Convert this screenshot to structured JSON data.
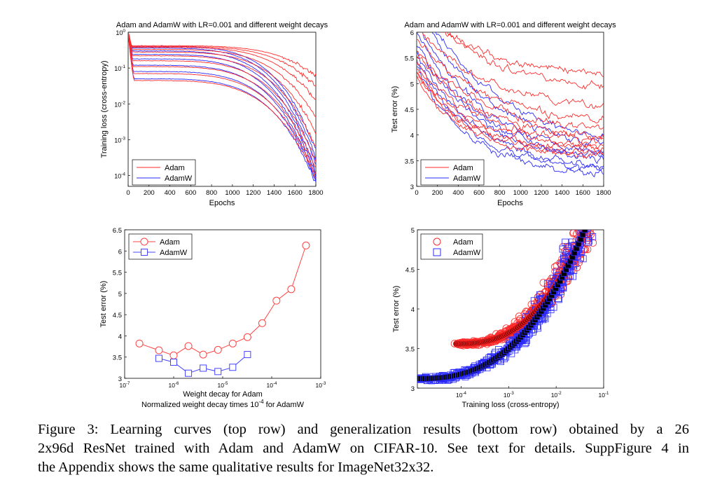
{
  "chart_data": [
    {
      "type": "line",
      "title": "Adam and AdamW with LR=0.001 and different weight decays",
      "xlabel": "Epochs",
      "ylabel": "Training loss (cross-entropy)",
      "xlim": [
        0,
        1800
      ],
      "ylim": [
        5e-05,
        1
      ],
      "yscale": "log",
      "xticks": [
        "0",
        "200",
        "400",
        "600",
        "800",
        "1000",
        "1200",
        "1400",
        "1600",
        "1800"
      ],
      "yticks": [
        {
          "value": 1,
          "base": "10",
          "exp": "0"
        },
        {
          "value": 0.1,
          "base": "10",
          "exp": "-1"
        },
        {
          "value": 0.01,
          "base": "10",
          "exp": "-2"
        },
        {
          "value": 0.001,
          "base": "10",
          "exp": "-3"
        },
        {
          "value": 0.0001,
          "base": "10",
          "exp": "-4"
        }
      ],
      "legend": "bottom-left",
      "series": [
        {
          "name": "Adam",
          "color": "#ff2a2a",
          "curves": [
            {
              "start": 0.42,
              "end": 0.06,
              "knee": 0.93,
              "early": 0.2
            },
            {
              "start": 0.4,
              "end": 0.03,
              "knee": 0.9,
              "early": 0.25
            },
            {
              "start": 0.38,
              "end": 0.012,
              "knee": 0.88,
              "early": 0.3
            },
            {
              "start": 0.33,
              "end": 0.004,
              "knee": 0.86,
              "early": 0.35
            },
            {
              "start": 0.28,
              "end": 0.0015,
              "knee": 0.84,
              "early": 0.4
            },
            {
              "start": 0.22,
              "end": 0.0006,
              "knee": 0.82,
              "early": 0.45
            },
            {
              "start": 0.16,
              "end": 0.00025,
              "knee": 0.8,
              "early": 0.5
            },
            {
              "start": 0.11,
              "end": 0.00015,
              "knee": 0.78,
              "early": 0.55
            },
            {
              "start": 0.07,
              "end": 0.0001,
              "knee": 0.76,
              "early": 0.6
            },
            {
              "start": 0.045,
              "end": 8e-05,
              "knee": 0.74,
              "early": 0.65
            }
          ]
        },
        {
          "name": "AdamW",
          "color": "#2a2aff",
          "curves": [
            {
              "start": 0.4,
              "end": 0.0005,
              "knee": 0.89,
              "early": 0.3
            },
            {
              "start": 0.36,
              "end": 0.0003,
              "knee": 0.87,
              "early": 0.35
            },
            {
              "start": 0.3,
              "end": 0.0002,
              "knee": 0.85,
              "early": 0.4
            },
            {
              "start": 0.24,
              "end": 0.00013,
              "knee": 0.83,
              "early": 0.45
            },
            {
              "start": 0.18,
              "end": 0.0001,
              "knee": 0.81,
              "early": 0.5
            },
            {
              "start": 0.12,
              "end": 8e-05,
              "knee": 0.79,
              "early": 0.55
            },
            {
              "start": 0.08,
              "end": 7e-05,
              "knee": 0.77,
              "early": 0.6
            },
            {
              "start": 0.05,
              "end": 6e-05,
              "knee": 0.75,
              "early": 0.65
            }
          ]
        }
      ]
    },
    {
      "type": "line",
      "title": "Adam and AdamW with LR=0.001 and different weight decays",
      "xlabel": "Epochs",
      "ylabel": "Test error (%)",
      "xlim": [
        0,
        1800
      ],
      "ylim": [
        3,
        6
      ],
      "xticks": [
        "0",
        "200",
        "400",
        "600",
        "800",
        "1000",
        "1200",
        "1400",
        "1600",
        "1800"
      ],
      "yticks": [
        "3",
        "3.5",
        "4",
        "4.5",
        "5",
        "5.5",
        "6"
      ],
      "legend": "bottom-left",
      "series": [
        {
          "name": "Adam",
          "color": "#ff2a2a",
          "curves": [
            {
              "start": 6.4,
              "end": 5.05
            },
            {
              "start": 6.6,
              "end": 4.8
            },
            {
              "start": 6.1,
              "end": 4.45
            },
            {
              "start": 5.9,
              "end": 4.2
            },
            {
              "start": 5.7,
              "end": 4.05
            },
            {
              "start": 5.6,
              "end": 3.9
            },
            {
              "start": 5.4,
              "end": 3.85
            },
            {
              "start": 5.3,
              "end": 3.75
            },
            {
              "start": 5.25,
              "end": 3.68
            },
            {
              "start": 5.2,
              "end": 3.62
            },
            {
              "start": 5.15,
              "end": 3.58
            }
          ]
        },
        {
          "name": "AdamW",
          "color": "#2a2aff",
          "curves": [
            {
              "start": 6.7,
              "end": 3.7
            },
            {
              "start": 6.5,
              "end": 3.6
            },
            {
              "start": 6.2,
              "end": 3.5
            },
            {
              "start": 6.0,
              "end": 3.45
            },
            {
              "start": 5.8,
              "end": 3.4
            },
            {
              "start": 5.6,
              "end": 3.32
            },
            {
              "start": 5.5,
              "end": 3.25
            },
            {
              "start": 5.3,
              "end": 3.18
            }
          ]
        }
      ]
    },
    {
      "type": "line",
      "title": "",
      "xlabel": "Weight decay for Adam",
      "xlabel2": "Normalized weight decay times 10",
      "xlabel2_exp": "-4",
      "xlabel2_suffix": " for AdamW",
      "ylabel": "Test error (%)",
      "xscale": "log",
      "xlim": [
        1e-07,
        0.001
      ],
      "ylim": [
        3,
        6.5
      ],
      "xticks": [
        {
          "value": 1e-07,
          "base": "10",
          "exp": "-7"
        },
        {
          "value": 1e-06,
          "base": "10",
          "exp": "-6"
        },
        {
          "value": 1e-05,
          "base": "10",
          "exp": "-5"
        },
        {
          "value": 0.0001,
          "base": "10",
          "exp": "-4"
        },
        {
          "value": 0.001,
          "base": "10",
          "exp": "-3"
        }
      ],
      "yticks": [
        "3",
        "3.5",
        "4",
        "4.5",
        "5",
        "5.5",
        "6",
        "6.5"
      ],
      "legend": "top-left",
      "series": [
        {
          "name": "Adam",
          "color": "#ff4444",
          "marker": "circle",
          "x": [
            2e-07,
            5e-07,
            1e-06,
            2e-06,
            4e-06,
            8e-06,
            1.6e-05,
            3.2e-05,
            6.4e-05,
            0.000125,
            0.00025,
            0.0005
          ],
          "y": [
            3.82,
            3.66,
            3.54,
            3.76,
            3.56,
            3.67,
            3.82,
            3.97,
            4.3,
            4.83,
            5.1,
            6.13
          ]
        },
        {
          "name": "AdamW",
          "color": "#4444ff",
          "marker": "square",
          "x": [
            5e-07,
            1e-06,
            2e-06,
            4e-06,
            8e-06,
            1.6e-05,
            3.2e-05
          ],
          "y": [
            3.47,
            3.38,
            3.12,
            3.24,
            3.16,
            3.26,
            3.56
          ]
        }
      ]
    },
    {
      "type": "scatter",
      "title": "",
      "xlabel": "Training loss (cross-entropy)",
      "ylabel": "Test error (%)",
      "xscale": "log",
      "xlim": [
        1.2e-05,
        0.1
      ],
      "ylim": [
        3,
        5
      ],
      "xticks": [
        {
          "value": 0.0001,
          "base": "10",
          "exp": "-4"
        },
        {
          "value": 0.001,
          "base": "10",
          "exp": "-3"
        },
        {
          "value": 0.01,
          "base": "10",
          "exp": "-2"
        },
        {
          "value": 0.1,
          "base": "10",
          "exp": "-1"
        }
      ],
      "yticks": [
        "3",
        "3.5",
        "4",
        "4.5",
        "5"
      ],
      "legend": "top-left",
      "series": [
        {
          "name": "Adam",
          "color": "#ff2a2a",
          "marker": "circle",
          "fill_mean": "#8b0000",
          "x_range": [
            8e-05,
            0.04
          ],
          "y_range": [
            3.56,
            5.0
          ],
          "spread": 0.07
        },
        {
          "name": "AdamW",
          "color": "#2a2aff",
          "marker": "square",
          "fill_mean": "#000000",
          "x_range": [
            1.3e-05,
            0.04
          ],
          "y_range": [
            3.12,
            5.0
          ],
          "spread": 0.1
        }
      ]
    }
  ],
  "caption": {
    "lines": [
      "Figure 3:   Learning curves (top row) and generalization results (bottom row) obtained by a 26",
      "2x96d ResNet trained with Adam and AdamW on CIFAR-10. See text for details. SuppFigure 4 in",
      "the Appendix shows the same qualitative results for ImageNet32x32."
    ]
  }
}
